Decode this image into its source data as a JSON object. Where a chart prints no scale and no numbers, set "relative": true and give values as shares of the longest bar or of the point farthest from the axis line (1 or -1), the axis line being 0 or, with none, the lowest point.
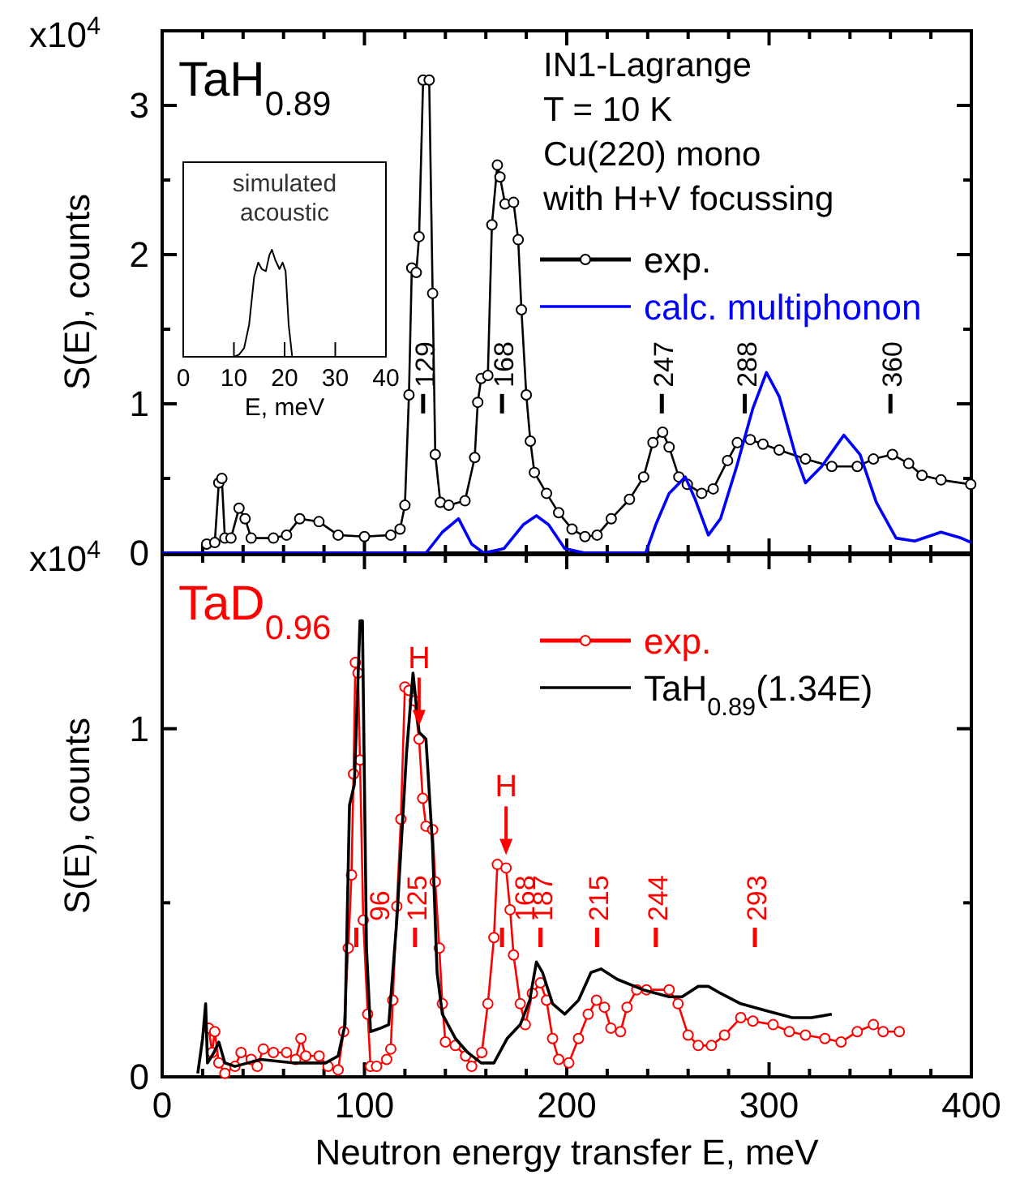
{
  "chart_data": [
    {
      "type": "line",
      "title": "TaH$_{0.89}$",
      "ylabel": "S(E), counts",
      "xlim": [
        0,
        400
      ],
      "ylim": [
        0,
        3.5
      ],
      "xticks": [
        0,
        {
          "value": 20,
          "label": null
        },
        {
          "value": 40,
          "label": null
        },
        {
          "value": 60,
          "label": null
        },
        {
          "value": 80,
          "label": null
        },
        100,
        {
          "value": 120,
          "label": null
        },
        {
          "value": 140,
          "label": null
        },
        {
          "value": 160,
          "label": null
        },
        {
          "value": 180,
          "label": null
        },
        200,
        {
          "value": 220,
          "label": null
        },
        {
          "value": 240,
          "label": null
        },
        {
          "value": 260,
          "label": null
        },
        {
          "value": 280,
          "label": null
        },
        300,
        {
          "value": 320,
          "label": null
        },
        {
          "value": 340,
          "label": null
        },
        {
          "value": 360,
          "label": null
        },
        {
          "value": 380,
          "label": null
        },
        400
      ],
      "yticks": [
        0,
        {
          "value": 0.5,
          "label": null
        },
        1,
        {
          "value": 1.5,
          "label": null
        },
        2,
        {
          "value": 2.5,
          "label": null
        },
        3
      ],
      "tick_labels": "y",
      "legend": "right",
      "annotations": [
        "x10$^{4}$",
        "IN1-Lagrange",
        "T = 10 K",
        "Cu(220) mono",
        "with H+V focussing"
      ],
      "ref_lines": [
        {
          "axis": "x",
          "value": 129,
          "label": "129"
        },
        {
          "axis": "x",
          "value": 168,
          "label": "168"
        },
        {
          "axis": "x",
          "value": 247,
          "label": "247"
        },
        {
          "axis": "x",
          "value": 288,
          "label": "288"
        },
        {
          "axis": "x",
          "value": 360,
          "label": "360"
        }
      ],
      "series": [
        {
          "name": "exp.",
          "color": "#000000",
          "marker": "circle",
          "x": [
            22,
            26,
            28,
            29.5,
            31,
            34,
            38,
            41,
            44,
            55,
            61.5,
            68,
            77.5,
            87,
            100,
            113,
            117.6,
            120,
            122,
            123.4,
            125.6,
            127,
            129,
            132,
            133.7,
            135,
            137.5,
            141.7,
            149.7,
            154.5,
            156,
            157.7,
            161,
            163,
            165.7,
            167,
            169.5,
            173.7,
            176,
            177.6,
            180,
            182,
            184,
            190,
            196,
            202.6,
            209,
            215,
            222,
            231,
            238,
            242.6,
            247.4,
            250.6,
            255.4,
            259.6,
            266.7,
            272.4,
            279.5,
            284.3,
            290.7,
            297,
            305,
            318,
            331,
            343.6,
            351.6,
            361,
            369,
            375.6,
            385,
            399.7
          ],
          "values": [
            0.06,
            0.07,
            0.47,
            0.5,
            0.1,
            0.1,
            0.3,
            0.23,
            0.1,
            0.1,
            0.12,
            0.23,
            0.21,
            0.12,
            0.11,
            0.12,
            0.16,
            0.32,
            1.06,
            1.91,
            1.88,
            2.12,
            3.17,
            3.17,
            1.74,
            0.66,
            0.34,
            0.32,
            0.35,
            0.64,
            1.01,
            1.17,
            1.19,
            2.2,
            2.6,
            2.52,
            2.34,
            2.35,
            2.1,
            1.63,
            1.06,
            0.75,
            0.54,
            0.4,
            0.27,
            0.16,
            0.11,
            0.12,
            0.23,
            0.36,
            0.51,
            0.74,
            0.81,
            0.71,
            0.51,
            0.46,
            0.4,
            0.43,
            0.62,
            0.74,
            0.76,
            0.73,
            0.69,
            0.63,
            0.58,
            0.58,
            0.63,
            0.66,
            0.6,
            0.52,
            0.49,
            0.46
          ]
        },
        {
          "name": "calc. multiphonon",
          "color": "#0000ff",
          "marker": "none",
          "x": [
            0,
            130.4,
            138.5,
            146.5,
            153,
            159,
            169,
            178.5,
            185,
            191,
            199,
            209,
            239,
            244,
            250.6,
            258.6,
            263.5,
            270,
            276,
            284,
            292,
            298.7,
            305,
            313,
            318,
            326,
            337,
            345,
            353,
            362.8,
            372,
            385,
            395,
            400
          ],
          "values": [
            0,
            0,
            0.14,
            0.23,
            0.06,
            0,
            0.03,
            0.19,
            0.25,
            0.19,
            0.03,
            0,
            0,
            0.19,
            0.4,
            0.51,
            0.36,
            0.12,
            0.23,
            0.58,
            0.97,
            1.21,
            1.05,
            0.66,
            0.47,
            0.58,
            0.79,
            0.66,
            0.34,
            0.1,
            0.08,
            0.14,
            0.1,
            0.07
          ]
        }
      ]
    },
    {
      "type": "line",
      "title": "simulated acoustic",
      "xlabel": "E, meV",
      "xlim": [
        0,
        40
      ],
      "xticks": [
        0,
        10,
        20,
        30,
        40
      ],
      "relative": true,
      "tick_labels": "x",
      "series": [
        {
          "color": "#000000",
          "marker": "none",
          "x": [
            10,
            11,
            12,
            13,
            14,
            14.8,
            15.5,
            16.3,
            17,
            17.5,
            18.2,
            19,
            19.6,
            20.2,
            20.8,
            21.5
          ],
          "values": [
            0,
            0.02,
            0.08,
            0.3,
            0.75,
            0.88,
            0.82,
            0.8,
            0.95,
            1,
            0.9,
            0.82,
            0.88,
            0.8,
            0.3,
            0
          ]
        }
      ]
    },
    {
      "type": "line",
      "title": "TaD$_{0.96}$",
      "xlabel": "Neutron energy transfer E, meV",
      "ylabel": "S(E), counts",
      "xlim": [
        0,
        400
      ],
      "ylim": [
        0,
        1.5
      ],
      "xticks": [
        0,
        {
          "value": 20,
          "label": null
        },
        {
          "value": 40,
          "label": null
        },
        {
          "value": 60,
          "label": null
        },
        {
          "value": 80,
          "label": null
        },
        100,
        {
          "value": 120,
          "label": null
        },
        {
          "value": 140,
          "label": null
        },
        {
          "value": 160,
          "label": null
        },
        {
          "value": 180,
          "label": null
        },
        200,
        {
          "value": 220,
          "label": null
        },
        {
          "value": 240,
          "label": null
        },
        {
          "value": 260,
          "label": null
        },
        {
          "value": 280,
          "label": null
        },
        300,
        {
          "value": 320,
          "label": null
        },
        {
          "value": 340,
          "label": null
        },
        {
          "value": 360,
          "label": null
        },
        {
          "value": 380,
          "label": null
        },
        400
      ],
      "yticks": [
        0,
        {
          "value": 0.5,
          "label": null
        },
        1
      ],
      "legend": "top right",
      "annotations": [
        "x10$^{4}$",
        {
          "text": "H",
          "x": 127,
          "y": 0.97
        },
        {
          "text": "H",
          "x": 170,
          "y": 0.6
        }
      ],
      "ref_lines": [
        {
          "axis": "x",
          "value": 96,
          "label": "96"
        },
        {
          "axis": "x",
          "value": 125,
          "label": "125"
        },
        {
          "axis": "x",
          "value": 168,
          "label": "168"
        },
        {
          "axis": "x",
          "value": 187,
          "label": "187"
        },
        {
          "axis": "x",
          "value": 215,
          "label": "215"
        },
        {
          "axis": "x",
          "value": 244,
          "label": "244"
        },
        {
          "axis": "x",
          "value": 293,
          "label": "293"
        }
      ],
      "series": [
        {
          "name": "exp.",
          "color": "#ff0000",
          "marker": "circle",
          "x": [
            23,
            24.7,
            26,
            28,
            31,
            36,
            39,
            44,
            47,
            50,
            55,
            61.5,
            66,
            68.6,
            71,
            77.6,
            82,
            87,
            89.7,
            92,
            93.6,
            94.6,
            95.5,
            96.8,
            97.8,
            99.4,
            101.6,
            103,
            106,
            111,
            113,
            114,
            116,
            118,
            120,
            122,
            124.7,
            127,
            128.8,
            130.4,
            133.7,
            135,
            137,
            138.5,
            140,
            144.9,
            150,
            153,
            158,
            161,
            164,
            165.7,
            170,
            172,
            173.7,
            177,
            179.5,
            183,
            187,
            190,
            193,
            196,
            201,
            205.8,
            210.6,
            214.7,
            218.6,
            221.8,
            226.6,
            229.8,
            234.6,
            239.4,
            250.6,
            255,
            260,
            265,
            271.5,
            278,
            286,
            292,
            302,
            310,
            318,
            327.6,
            335.6,
            343.6,
            351.6,
            356.4,
            364.4
          ],
          "values": [
            0.14,
            0.07,
            0.13,
            0.04,
            0.01,
            0.03,
            0.07,
            0.05,
            0.03,
            0.08,
            0.07,
            0.07,
            0.05,
            0.11,
            0.06,
            0.06,
            0.03,
            0.02,
            0.13,
            0.37,
            0.58,
            0.87,
            1.19,
            1.16,
            0.91,
            0.45,
            0.18,
            0.03,
            0.03,
            0.05,
            0.08,
            0.22,
            0.49,
            0.74,
            1.12,
            1.11,
            1.08,
            0.97,
            0.8,
            0.72,
            0.71,
            0.56,
            0.37,
            0.21,
            0.1,
            0.09,
            0.06,
            0.03,
            0.07,
            0.21,
            0.4,
            0.61,
            0.6,
            0.48,
            0.35,
            0.21,
            0.15,
            0.24,
            0.27,
            0.22,
            0.11,
            0.05,
            0.04,
            0.11,
            0.18,
            0.22,
            0.2,
            0.14,
            0.13,
            0.2,
            0.25,
            0.25,
            0.25,
            0.21,
            0.12,
            0.09,
            0.09,
            0.12,
            0.17,
            0.16,
            0.15,
            0.13,
            0.12,
            0.11,
            0.1,
            0.13,
            0.15,
            0.13,
            0.13
          ]
        },
        {
          "name": "TaH$_{0.89}$(1.34E)",
          "color": "#000000",
          "marker": "none",
          "x": [
            17.6,
            20,
            21.5,
            22.4,
            25.6,
            28,
            31,
            36,
            48.7,
            64.7,
            80.8,
            87,
            90.4,
            92.6,
            95,
            97.8,
            99,
            101,
            103,
            108,
            112,
            116,
            120.8,
            124,
            127,
            130.4,
            133.6,
            135.9,
            138.5,
            145,
            151,
            157.7,
            164,
            170.5,
            177,
            181.7,
            185,
            188,
            193,
            199,
            205.8,
            212,
            217,
            225,
            237.8,
            250.6,
            257,
            265,
            270,
            276,
            286,
            298.7,
            311.5,
            321,
            331
          ],
          "values": [
            0.01,
            0.11,
            0.21,
            0.04,
            0.07,
            0.1,
            0.04,
            0.03,
            0.05,
            0.04,
            0.04,
            0.06,
            0.15,
            0.78,
            0.84,
            1.31,
            1.31,
            0.37,
            0.13,
            0.14,
            0.15,
            0.45,
            0.93,
            1.16,
            0.99,
            0.97,
            0.67,
            0.3,
            0.18,
            0.11,
            0.07,
            0.04,
            0.04,
            0.11,
            0.15,
            0.22,
            0.33,
            0.3,
            0.21,
            0.18,
            0.22,
            0.3,
            0.31,
            0.28,
            0.25,
            0.23,
            0.23,
            0.26,
            0.26,
            0.24,
            0.21,
            0.19,
            0.17,
            0.17,
            0.18
          ]
        }
      ]
    }
  ]
}
